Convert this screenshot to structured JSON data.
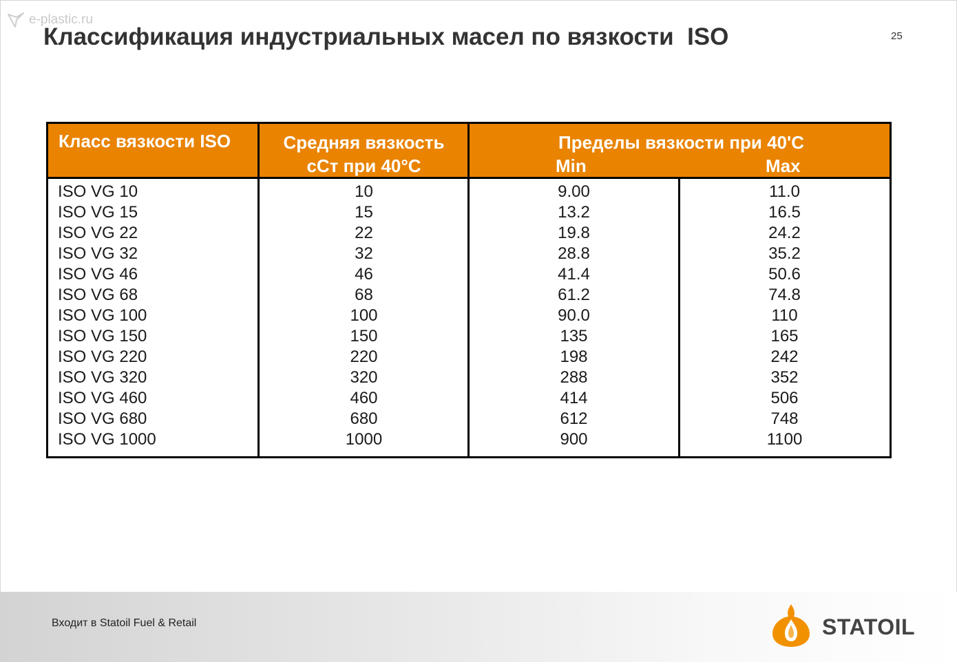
{
  "watermark": {
    "text": "e-plastic.ru",
    "icon": "bird-logo-icon"
  },
  "slide": {
    "title": "Классификация индустриальных масел по вязкости  ISO",
    "page_number": "25"
  },
  "table": {
    "header": {
      "col1": "Класс вязкости ISO",
      "col2_line1": "Средняя вязкость",
      "col2_line2": "сСт при 40°С",
      "range_title": "Пределы вязкости при  40'С",
      "range_min": "Min",
      "range_max": "Max"
    },
    "columns": {
      "grade": [
        "ISO VG 10",
        "ISO VG 15",
        "ISO VG 22",
        "ISO VG 32",
        "ISO VG 46",
        "ISO VG 68",
        "ISO VG 100",
        "ISO VG 150",
        "ISO VG 220",
        "ISO VG 320",
        "ISO VG 460",
        "ISO VG 680",
        "ISO VG 1000"
      ],
      "mean": [
        "10",
        "15",
        "22",
        "32",
        "46",
        "68",
        "100",
        "150",
        "220",
        "320",
        "460",
        "680",
        "1000"
      ],
      "min": [
        "9.00",
        "13.2",
        "19.8",
        "28.8",
        "41.4",
        "61.2",
        "90.0",
        "135",
        "198",
        "288",
        "414",
        "612",
        "900"
      ],
      "max": [
        "11.0",
        "16.5",
        "24.2",
        "35.2",
        "50.6",
        "74.8",
        "110",
        "165",
        "242",
        "352",
        "506",
        "748",
        "1100"
      ]
    }
  },
  "footer": {
    "text": "Входит в Statoil Fuel & Retail",
    "logo_text": "STATOIL",
    "logo_icon": "statoil-flame-drop-icon"
  },
  "colors": {
    "header_orange": "#e98300",
    "logo_orange": "#f29100"
  }
}
